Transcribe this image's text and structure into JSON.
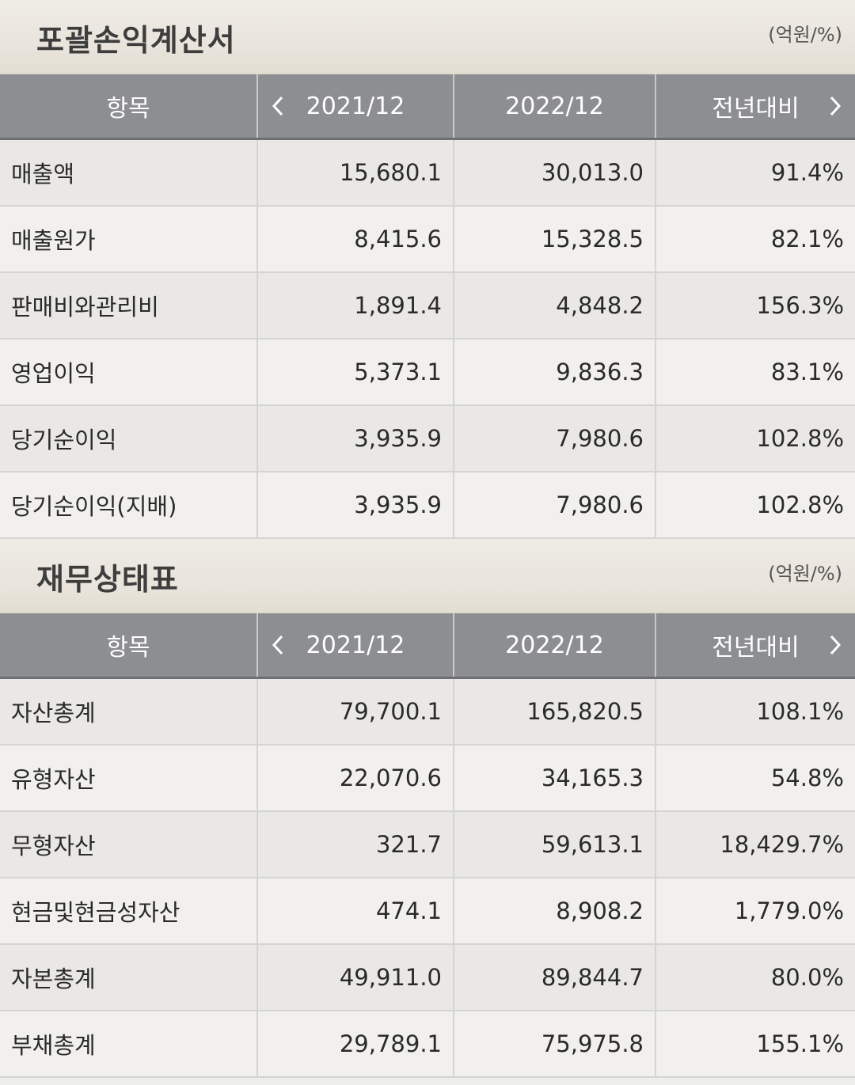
{
  "income_statement": {
    "title": "포괄손익계산서",
    "unit": "(억원/%)",
    "headers": {
      "item": "항목",
      "col1": "2021/12",
      "col2": "2022/12",
      "col3": "전년대비"
    },
    "rows": [
      {
        "item": "매출액",
        "v2021": "15,680.1",
        "v2022": "30,013.0",
        "yoy": "91.4%"
      },
      {
        "item": "매출원가",
        "v2021": "8,415.6",
        "v2022": "15,328.5",
        "yoy": "82.1%"
      },
      {
        "item": "판매비와관리비",
        "v2021": "1,891.4",
        "v2022": "4,848.2",
        "yoy": "156.3%"
      },
      {
        "item": "영업이익",
        "v2021": "5,373.1",
        "v2022": "9,836.3",
        "yoy": "83.1%"
      },
      {
        "item": "당기순이익",
        "v2021": "3,935.9",
        "v2022": "7,980.6",
        "yoy": "102.8%"
      },
      {
        "item": "당기순이익(지배)",
        "v2021": "3,935.9",
        "v2022": "7,980.6",
        "yoy": "102.8%"
      }
    ]
  },
  "balance_sheet": {
    "title": "재무상태표",
    "unit": "(억원/%)",
    "headers": {
      "item": "항목",
      "col1": "2021/12",
      "col2": "2022/12",
      "col3": "전년대비"
    },
    "rows": [
      {
        "item": "자산총계",
        "v2021": "79,700.1",
        "v2022": "165,820.5",
        "yoy": "108.1%"
      },
      {
        "item": "유형자산",
        "v2021": "22,070.6",
        "v2022": "34,165.3",
        "yoy": "54.8%"
      },
      {
        "item": "무형자산",
        "v2021": "321.7",
        "v2022": "59,613.1",
        "yoy": "18,429.7%"
      },
      {
        "item": "현금및현금성자산",
        "v2021": "474.1",
        "v2022": "8,908.2",
        "yoy": "1,779.0%"
      },
      {
        "item": "자본총계",
        "v2021": "49,911.0",
        "v2022": "89,844.7",
        "yoy": "80.0%"
      },
      {
        "item": "부채총계",
        "v2021": "29,789.1",
        "v2022": "75,975.8",
        "yoy": "155.1%"
      }
    ]
  },
  "icons": {
    "prev": "chevron-left-icon",
    "next": "chevron-right-icon"
  },
  "colors": {
    "header_bg": "#8d8e91",
    "section_bg": "#e9e5dd"
  }
}
